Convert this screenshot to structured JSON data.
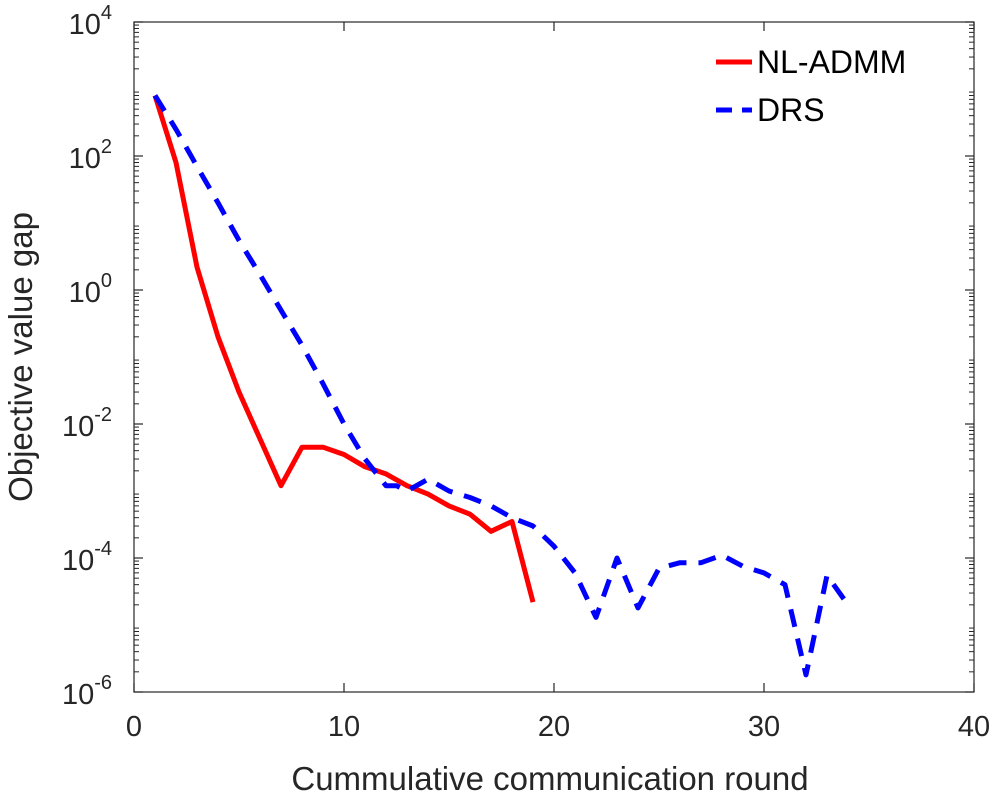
{
  "chart_data": {
    "type": "line",
    "title": "",
    "xlabel": "Cummulative communication round",
    "ylabel": "Objective value gap",
    "xlim": [
      0,
      40
    ],
    "ylim": [
      1e-06,
      10000
    ],
    "yscale": "log",
    "grid": false,
    "legend": "top-right",
    "x_ticks": [
      {
        "value": 0,
        "label": "0"
      },
      {
        "value": 10,
        "label": "10"
      },
      {
        "value": 20,
        "label": "20"
      },
      {
        "value": 30,
        "label": "30"
      },
      {
        "value": 40,
        "label": "40"
      }
    ],
    "y_ticks": [
      {
        "value": 1e-06,
        "base": "10",
        "exp": "-6"
      },
      {
        "value": 0.0001,
        "base": "10",
        "exp": "-4"
      },
      {
        "value": 0.01,
        "base": "10",
        "exp": "-2"
      },
      {
        "value": 1,
        "base": "10",
        "exp": "0"
      },
      {
        "value": 100,
        "base": "10",
        "exp": "2"
      },
      {
        "value": 10000,
        "base": "10",
        "exp": "4"
      }
    ],
    "series": [
      {
        "name": "NL-ADMM",
        "color": "#ff0000",
        "dash": "solid",
        "x": [
          1,
          2,
          3,
          4,
          5,
          6,
          7,
          8,
          9,
          10,
          11,
          12,
          13,
          14,
          15,
          16,
          17,
          18,
          19
        ],
        "y": [
          800,
          80,
          2.2,
          0.2,
          0.03,
          0.006,
          0.0012,
          0.0045,
          0.0045,
          0.0035,
          0.0023,
          0.0018,
          0.0012,
          0.0009,
          0.0006,
          0.00045,
          0.00025,
          0.00035,
          2.2e-05
        ]
      },
      {
        "name": "DRS",
        "color": "#0000ff",
        "dash": "dashed",
        "x": [
          1,
          2,
          3,
          4,
          5,
          6,
          7,
          8,
          9,
          10,
          11,
          12,
          12.5,
          13,
          14,
          15,
          16,
          17,
          18,
          19,
          20,
          21,
          22,
          23,
          24,
          25,
          26,
          27,
          28,
          29,
          30,
          31,
          32,
          33,
          34
        ],
        "y": [
          800,
          250,
          70,
          20,
          5.5,
          1.7,
          0.5,
          0.15,
          0.04,
          0.01,
          0.003,
          0.0012,
          0.0012,
          0.001,
          0.0015,
          0.001,
          0.0008,
          0.0006,
          0.0004,
          0.0003,
          0.00015,
          6e-05,
          1.3e-05,
          0.0001,
          1.8e-05,
          7e-05,
          8.5e-05,
          8.5e-05,
          0.00011,
          7.5e-05,
          6e-05,
          4e-05,
          1.8e-06,
          5.5e-05,
          2e-05
        ]
      }
    ]
  }
}
